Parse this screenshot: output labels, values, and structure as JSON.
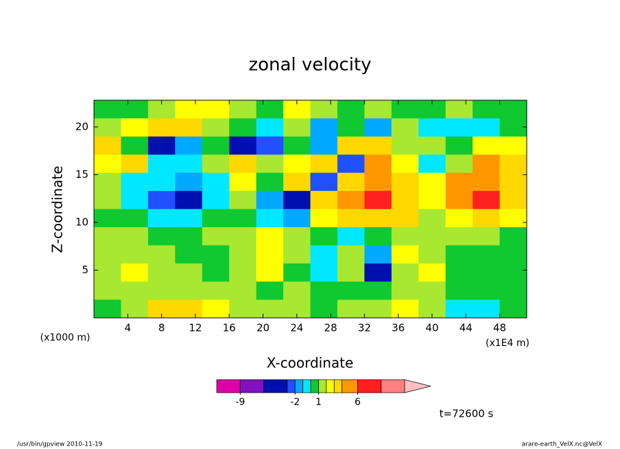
{
  "chart_data": {
    "type": "contour",
    "title": "zonal velocity",
    "xlabel": "X-coordinate",
    "ylabel": "Z-coordinate",
    "x_scale_label": "(x1E4 m)",
    "y_scale_label": "(x1000 m)",
    "xlim": [
      0,
      51.2
    ],
    "xticks": [
      4,
      8,
      12,
      16,
      20,
      24,
      28,
      32,
      36,
      40,
      44,
      48
    ],
    "ylim": [
      0,
      22.8
    ],
    "yticks": [
      5,
      10,
      15,
      20
    ],
    "z": [
      [
        0.5,
        0.5,
        1.5,
        2.5,
        2.5,
        1.5,
        0.5,
        2.5,
        1.5,
        0.5,
        1.5,
        0.5,
        0.5,
        1.5,
        0.5,
        0.5
      ],
      [
        1.5,
        2.5,
        3.5,
        3.5,
        1.5,
        0.5,
        -0.5,
        1.5,
        -1.5,
        0.5,
        -1.5,
        1.5,
        -0.5,
        -0.5,
        -0.5,
        0.5
      ],
      [
        3.5,
        0.5,
        -3.5,
        -1.5,
        0.5,
        -3.5,
        -2.5,
        0.5,
        -1.5,
        3.5,
        3.5,
        1.5,
        1.5,
        0.5,
        2.5,
        2.5
      ],
      [
        2.5,
        3.5,
        -0.5,
        -0.5,
        1.5,
        3.5,
        1.5,
        2.5,
        3.5,
        -2.5,
        5,
        2.5,
        -0.5,
        1.5,
        4.5,
        3.5
      ],
      [
        1.5,
        -0.5,
        -0.5,
        -1.5,
        -0.5,
        2.5,
        0.5,
        3.5,
        -2.5,
        3.5,
        5,
        3.5,
        2.5,
        4.5,
        5,
        3.5
      ],
      [
        1.5,
        -0.5,
        -2.5,
        -4.5,
        -0.5,
        1.5,
        -1.5,
        -4.5,
        3.5,
        5,
        7,
        3.5,
        2.5,
        5,
        7,
        3.5
      ],
      [
        0.5,
        0.5,
        -0.5,
        -0.5,
        0.5,
        0.5,
        -0.5,
        -1.5,
        2.5,
        3.5,
        3.5,
        3.5,
        1.5,
        2.5,
        3.5,
        2.5
      ],
      [
        1.5,
        1.5,
        0.5,
        0.5,
        1.5,
        1.5,
        2.5,
        1.5,
        0.5,
        -0.5,
        0.5,
        1.5,
        1.5,
        1.5,
        1.5,
        0.5
      ],
      [
        1.5,
        1.5,
        1.5,
        0.5,
        0.5,
        1.5,
        2.5,
        1.5,
        -0.5,
        1.5,
        -1.5,
        2.5,
        1.5,
        0.5,
        0.5,
        0.5
      ],
      [
        1.5,
        2.5,
        1.5,
        1.5,
        0.5,
        1.5,
        2.5,
        0.5,
        -0.5,
        1.5,
        -4.5,
        1.5,
        2.5,
        0.5,
        0.5,
        0.5
      ],
      [
        1.5,
        1.5,
        1.5,
        1.5,
        1.5,
        1.5,
        0.5,
        1.5,
        0.5,
        0.5,
        0.5,
        1.5,
        1.5,
        0.5,
        0.5,
        0.5
      ],
      [
        0.5,
        1.5,
        3.5,
        3.5,
        2.5,
        1.5,
        1.5,
        1.5,
        0.5,
        1.5,
        1.5,
        2.5,
        1.5,
        -0.5,
        -0.5,
        0.5
      ]
    ],
    "colorbar": {
      "levels": [
        -12,
        -9,
        -6,
        -3,
        -2,
        -1,
        0,
        1,
        2,
        3,
        4,
        6,
        9,
        12
      ],
      "colors": [
        "#e000a8",
        "#8010c0",
        "#0010b0",
        "#2050ff",
        "#00a8ff",
        "#00e8ff",
        "#10c830",
        "#a8e830",
        "#ffff00",
        "#ffd800",
        "#ff9800",
        "#ff2020",
        "#ff8080"
      ],
      "extend_color": "#ffc0c0",
      "ticks": [
        -9,
        -2,
        1,
        6
      ]
    },
    "annotation": "t=72600 s"
  },
  "footer": {
    "left": "/usr/bin/gpview  2010-11-19",
    "right": "arare-earth_VelX.nc@VelX"
  }
}
